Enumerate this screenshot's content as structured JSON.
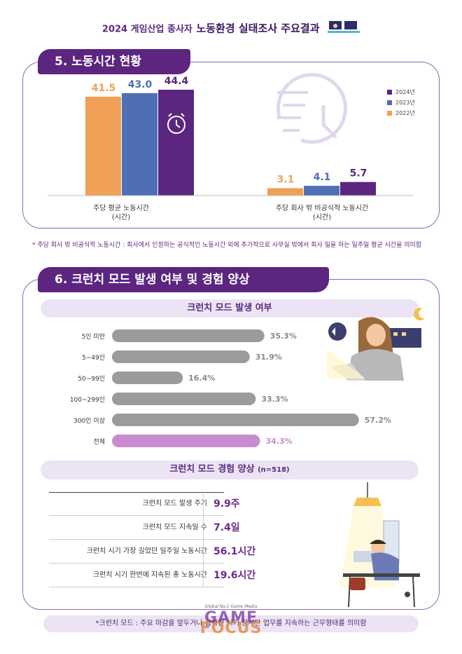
{
  "header": {
    "prefix": "2024 게임산업 종사자",
    "title": "노동환경 실태조사 주요결과"
  },
  "section5": {
    "title": "5. 노동시간 현황",
    "footnote": "* 주당 회사 밖 비공식적 노동시간 : 회사에서 인정하는 공식적인 노동시간 외에 추가적으로 사무실 밖에서 회사 일을 하는 일주일 평균 시간을 의미함"
  },
  "section6": {
    "title": "6. 크런치 모드 발생 여부 및 경험 양상",
    "occurrence_title": "크런치 모드 발생 여부",
    "experience_title": "크런치 모드 경험 양상",
    "experience_n": "(n=518)",
    "footnote": "*크런치 모드 : 주요 마감을 앞두거나 급박한 시기 장시간 업무를 지속하는 근무형태를 의미함"
  },
  "experience_table": [
    {
      "label": "크런치 모드 발생 주기",
      "value": "9.9주"
    },
    {
      "label": "크런치 모드 지속일 수",
      "value": "7.4일"
    },
    {
      "label": "크런치 시기 가장 길었던 일주일 노동시간",
      "value": "56.1시간"
    },
    {
      "label": "크런치 시기 한번에 지속된 총 노동시간",
      "value": "19.6시간"
    }
  ],
  "watermark": {
    "tagline": "Global No.1 Game Media",
    "line1": "GAME",
    "line2": "FOCUS"
  },
  "colors": {
    "y2024": "#5b2580",
    "y2023": "#4f6fb5",
    "y2022": "#f0a055",
    "crunch_bar": "#9b9b9b",
    "crunch_total": "#c98cd0",
    "accent": "#6d2a91"
  },
  "icons": [
    "computer-illustration-icon",
    "alarm-clock-icon",
    "clock-outline-icon",
    "moon-icon",
    "desk-lamp-icon"
  ],
  "chart_data": [
    {
      "type": "bar",
      "categories": [
        "주당 평균 노동시간\n(시간)",
        "주당 회사 밖 비공식적 노동시간\n(시간)"
      ],
      "series": [
        {
          "name": "2022년",
          "values": [
            41.5,
            3.1
          ]
        },
        {
          "name": "2023년",
          "values": [
            43.0,
            4.1
          ]
        },
        {
          "name": "2024년",
          "values": [
            44.4,
            5.7
          ]
        }
      ],
      "legend_order": [
        "2024년",
        "2023년",
        "2022년"
      ],
      "value_labels": [
        [
          "41.5",
          "3.1"
        ],
        [
          "43.0",
          "4.1"
        ],
        [
          "44.4",
          "5.7"
        ]
      ],
      "legend_position": "top-right",
      "grid": false,
      "ylim": [
        0,
        50
      ]
    },
    {
      "type": "bar",
      "orientation": "horizontal",
      "categories": [
        "5인 미만",
        "5~49인",
        "50~99인",
        "100~299인",
        "300인 이상",
        "전체"
      ],
      "values": [
        35.3,
        31.9,
        16.4,
        33.3,
        57.2,
        34.3
      ],
      "value_labels": [
        "35.3%",
        "31.9%",
        "16.4%",
        "33.3%",
        "57.2%",
        "34.3%"
      ],
      "grid": false,
      "xlim": [
        0,
        60
      ]
    }
  ]
}
